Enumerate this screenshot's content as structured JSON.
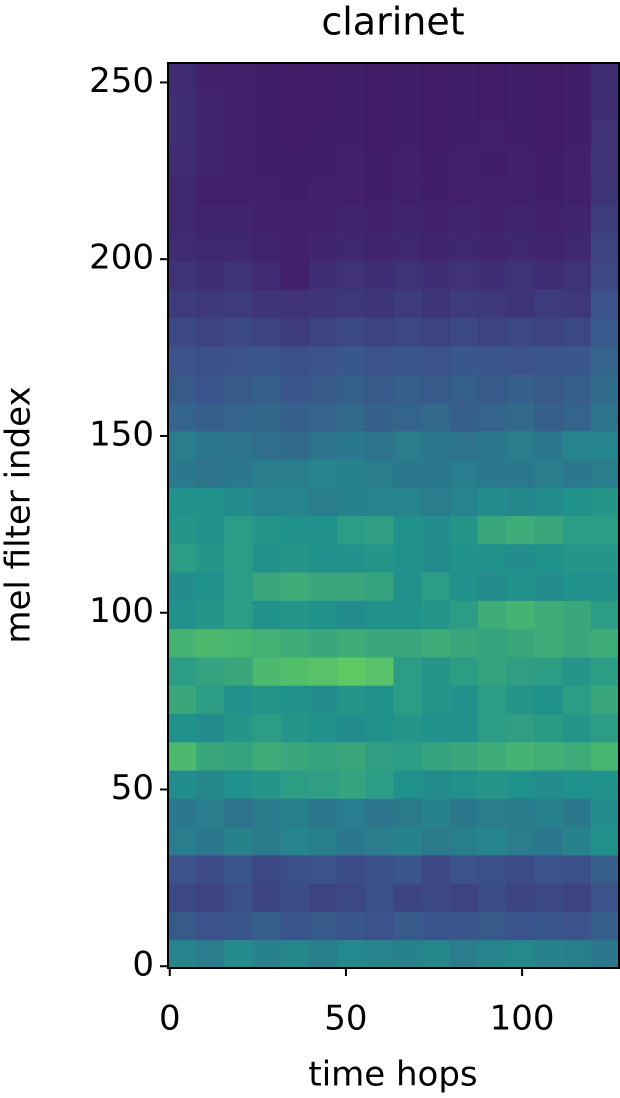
{
  "chart_data": {
    "type": "heatmap",
    "title": "clarinet",
    "x_label": "time hops",
    "y_label": "mel filter index",
    "colormap": "viridis",
    "xlim": [
      -0.5,
      127.5
    ],
    "ylim": [
      -0.5,
      255.5
    ],
    "xticks": [
      0,
      50,
      100
    ],
    "yticks": [
      0,
      50,
      100,
      150,
      200,
      250
    ],
    "z": [
      [
        0.45,
        0.42,
        0.48,
        0.44,
        0.46,
        0.43,
        0.47,
        0.45,
        0.44,
        0.46,
        0.42,
        0.45,
        0.47,
        0.44,
        0.43,
        0.4
      ],
      [
        0.28,
        0.25,
        0.27,
        0.3,
        0.26,
        0.28,
        0.27,
        0.25,
        0.29,
        0.26,
        0.27,
        0.28,
        0.26,
        0.27,
        0.25,
        0.3
      ],
      [
        0.22,
        0.2,
        0.24,
        0.21,
        0.23,
        0.2,
        0.22,
        0.24,
        0.21,
        0.22,
        0.2,
        0.23,
        0.21,
        0.22,
        0.2,
        0.25
      ],
      [
        0.25,
        0.23,
        0.26,
        0.22,
        0.24,
        0.25,
        0.23,
        0.24,
        0.26,
        0.22,
        0.25,
        0.24,
        0.23,
        0.25,
        0.24,
        0.3
      ],
      [
        0.42,
        0.4,
        0.44,
        0.41,
        0.45,
        0.43,
        0.4,
        0.42,
        0.44,
        0.41,
        0.43,
        0.45,
        0.42,
        0.4,
        0.44,
        0.5
      ],
      [
        0.4,
        0.42,
        0.38,
        0.41,
        0.43,
        0.4,
        0.42,
        0.39,
        0.41,
        0.44,
        0.4,
        0.42,
        0.41,
        0.43,
        0.4,
        0.48
      ],
      [
        0.48,
        0.46,
        0.5,
        0.52,
        0.55,
        0.56,
        0.58,
        0.55,
        0.5,
        0.48,
        0.5,
        0.52,
        0.5,
        0.48,
        0.5,
        0.5
      ],
      [
        0.68,
        0.6,
        0.58,
        0.62,
        0.6,
        0.58,
        0.6,
        0.56,
        0.55,
        0.58,
        0.6,
        0.62,
        0.65,
        0.63,
        0.62,
        0.66
      ],
      [
        0.5,
        0.48,
        0.52,
        0.55,
        0.52,
        0.5,
        0.48,
        0.5,
        0.52,
        0.5,
        0.5,
        0.55,
        0.56,
        0.54,
        0.52,
        0.55
      ],
      [
        0.6,
        0.55,
        0.5,
        0.52,
        0.5,
        0.48,
        0.52,
        0.5,
        0.55,
        0.52,
        0.5,
        0.55,
        0.52,
        0.5,
        0.55,
        0.6
      ],
      [
        0.55,
        0.58,
        0.6,
        0.68,
        0.7,
        0.72,
        0.75,
        0.72,
        0.55,
        0.52,
        0.55,
        0.58,
        0.56,
        0.55,
        0.52,
        0.55
      ],
      [
        0.65,
        0.68,
        0.66,
        0.64,
        0.62,
        0.6,
        0.62,
        0.6,
        0.6,
        0.62,
        0.6,
        0.58,
        0.6,
        0.62,
        0.6,
        0.62
      ],
      [
        0.5,
        0.52,
        0.55,
        0.5,
        0.52,
        0.5,
        0.48,
        0.5,
        0.5,
        0.52,
        0.55,
        0.62,
        0.65,
        0.62,
        0.6,
        0.55
      ],
      [
        0.48,
        0.5,
        0.55,
        0.6,
        0.62,
        0.6,
        0.6,
        0.58,
        0.5,
        0.55,
        0.5,
        0.48,
        0.5,
        0.48,
        0.5,
        0.5
      ],
      [
        0.55,
        0.52,
        0.55,
        0.5,
        0.52,
        0.5,
        0.5,
        0.52,
        0.5,
        0.48,
        0.5,
        0.5,
        0.48,
        0.5,
        0.52,
        0.52
      ],
      [
        0.52,
        0.5,
        0.55,
        0.52,
        0.5,
        0.5,
        0.55,
        0.56,
        0.5,
        0.48,
        0.52,
        0.6,
        0.62,
        0.6,
        0.55,
        0.55
      ],
      [
        0.5,
        0.5,
        0.48,
        0.45,
        0.45,
        0.42,
        0.44,
        0.45,
        0.45,
        0.42,
        0.45,
        0.48,
        0.46,
        0.48,
        0.5,
        0.52
      ],
      [
        0.4,
        0.38,
        0.4,
        0.42,
        0.42,
        0.45,
        0.44,
        0.42,
        0.4,
        0.4,
        0.42,
        0.4,
        0.4,
        0.42,
        0.4,
        0.42
      ],
      [
        0.42,
        0.4,
        0.38,
        0.36,
        0.35,
        0.38,
        0.4,
        0.38,
        0.42,
        0.4,
        0.38,
        0.4,
        0.42,
        0.4,
        0.45,
        0.45
      ],
      [
        0.32,
        0.3,
        0.32,
        0.33,
        0.3,
        0.32,
        0.34,
        0.3,
        0.32,
        0.34,
        0.3,
        0.32,
        0.34,
        0.3,
        0.32,
        0.38
      ],
      [
        0.28,
        0.26,
        0.28,
        0.3,
        0.27,
        0.28,
        0.3,
        0.28,
        0.3,
        0.28,
        0.3,
        0.28,
        0.3,
        0.28,
        0.3,
        0.35
      ],
      [
        0.25,
        0.24,
        0.25,
        0.26,
        0.24,
        0.25,
        0.27,
        0.25,
        0.26,
        0.25,
        0.27,
        0.26,
        0.25,
        0.26,
        0.27,
        0.32
      ],
      [
        0.22,
        0.2,
        0.22,
        0.2,
        0.18,
        0.2,
        0.22,
        0.2,
        0.22,
        0.2,
        0.22,
        0.2,
        0.22,
        0.2,
        0.22,
        0.28
      ],
      [
        0.18,
        0.17,
        0.18,
        0.16,
        0.15,
        0.16,
        0.17,
        0.16,
        0.18,
        0.16,
        0.18,
        0.17,
        0.16,
        0.18,
        0.17,
        0.25
      ],
      [
        0.15,
        0.14,
        0.15,
        0.13,
        0.1,
        0.14,
        0.15,
        0.14,
        0.15,
        0.14,
        0.15,
        0.14,
        0.15,
        0.14,
        0.15,
        0.22
      ],
      [
        0.13,
        0.12,
        0.12,
        0.11,
        0.1,
        0.11,
        0.12,
        0.11,
        0.12,
        0.11,
        0.12,
        0.11,
        0.12,
        0.11,
        0.12,
        0.2
      ],
      [
        0.12,
        0.11,
        0.11,
        0.1,
        0.1,
        0.1,
        0.11,
        0.1,
        0.11,
        0.1,
        0.11,
        0.1,
        0.11,
        0.1,
        0.11,
        0.18
      ],
      [
        0.12,
        0.1,
        0.1,
        0.1,
        0.09,
        0.1,
        0.1,
        0.09,
        0.1,
        0.09,
        0.1,
        0.1,
        0.1,
        0.09,
        0.1,
        0.16
      ],
      [
        0.13,
        0.11,
        0.1,
        0.09,
        0.09,
        0.09,
        0.1,
        0.09,
        0.1,
        0.09,
        0.1,
        0.09,
        0.1,
        0.09,
        0.1,
        0.15
      ],
      [
        0.14,
        0.11,
        0.1,
        0.09,
        0.08,
        0.09,
        0.09,
        0.08,
        0.09,
        0.08,
        0.09,
        0.1,
        0.09,
        0.08,
        0.09,
        0.15
      ],
      [
        0.14,
        0.11,
        0.1,
        0.09,
        0.08,
        0.08,
        0.09,
        0.08,
        0.09,
        0.08,
        0.09,
        0.08,
        0.09,
        0.08,
        0.09,
        0.14
      ],
      [
        0.13,
        0.1,
        0.1,
        0.09,
        0.08,
        0.08,
        0.09,
        0.08,
        0.09,
        0.08,
        0.09,
        0.08,
        0.09,
        0.08,
        0.09,
        0.14
      ]
    ]
  }
}
